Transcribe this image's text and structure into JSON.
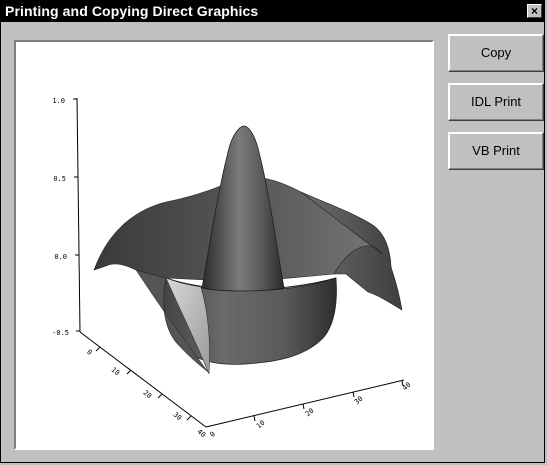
{
  "window": {
    "title": "Printing and Copying Direct Graphics",
    "close_label": "×"
  },
  "buttons": {
    "copy": "Copy",
    "idl_print": "IDL Print",
    "vb_print": "VB Print"
  },
  "plot": {
    "z_ticks": [
      "1.0",
      "0.5",
      "0.0",
      "-0.5"
    ],
    "y_ticks": [
      "0",
      "10",
      "20",
      "30",
      "40"
    ],
    "x_ticks": [
      "0",
      "10",
      "20",
      "30",
      "40"
    ]
  }
}
